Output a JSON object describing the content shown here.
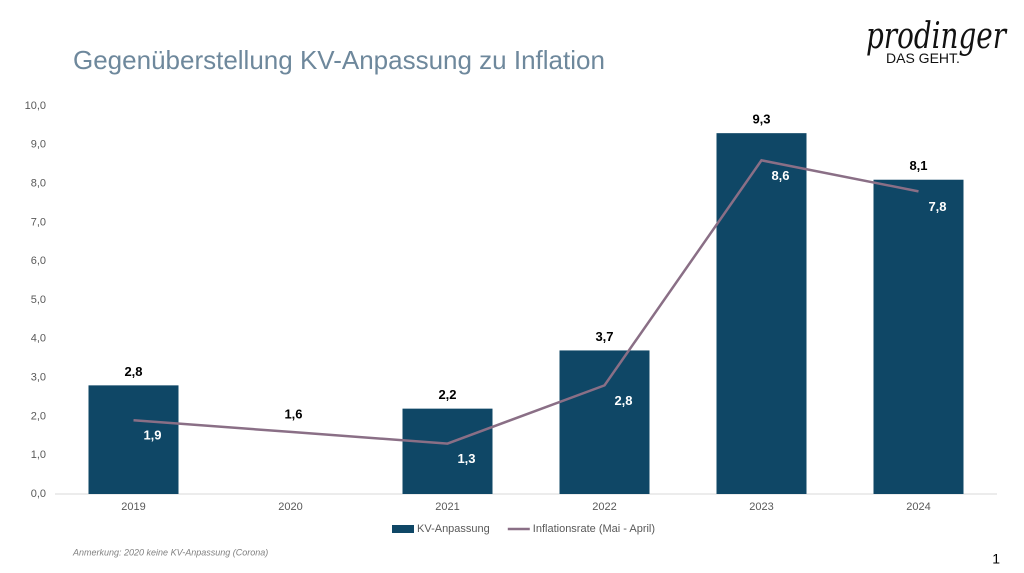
{
  "logo": {
    "brand": "prodinger",
    "slogan": "DAS GEHT."
  },
  "page_number": "1",
  "chart_data": {
    "type": "bar",
    "title": "Gegenüberstellung KV-Anpassung zu Inflation",
    "annotation": "Anmerkung: 2020 keine KV-Anpassung (Corona)",
    "categories": [
      "2019",
      "2020",
      "2021",
      "2022",
      "2023",
      "2024"
    ],
    "series": [
      {
        "name": "KV-Anpassung",
        "type": "bar",
        "color": "#0f4766",
        "values": [
          2.8,
          null,
          2.2,
          3.7,
          9.3,
          8.1
        ],
        "value_labels": [
          "2,8",
          null,
          "2,2",
          "3,7",
          "9,3",
          "8,1"
        ]
      },
      {
        "name": "Inflationsrate (Mai - April)",
        "type": "line",
        "color": "#8a6f86",
        "values": [
          1.9,
          1.6,
          1.3,
          2.8,
          8.6,
          7.8
        ],
        "value_labels": [
          "1,9",
          "1,6",
          "1,3",
          "2,8",
          "8,6",
          "7,8"
        ]
      }
    ],
    "ylim": [
      0,
      10
    ],
    "yticks": [
      {
        "value": 0,
        "label": "0,0"
      },
      {
        "value": 1,
        "label": "1,0"
      },
      {
        "value": 2,
        "label": "2,0"
      },
      {
        "value": 3,
        "label": "3,0"
      },
      {
        "value": 4,
        "label": "4,0"
      },
      {
        "value": 5,
        "label": "5,0"
      },
      {
        "value": 6,
        "label": "6,0"
      },
      {
        "value": 7,
        "label": "7,0"
      },
      {
        "value": 8,
        "label": "8,0"
      },
      {
        "value": 9,
        "label": "9,0"
      },
      {
        "value": 10,
        "label": "10,0"
      }
    ],
    "grid": false,
    "legend": "bottom"
  }
}
